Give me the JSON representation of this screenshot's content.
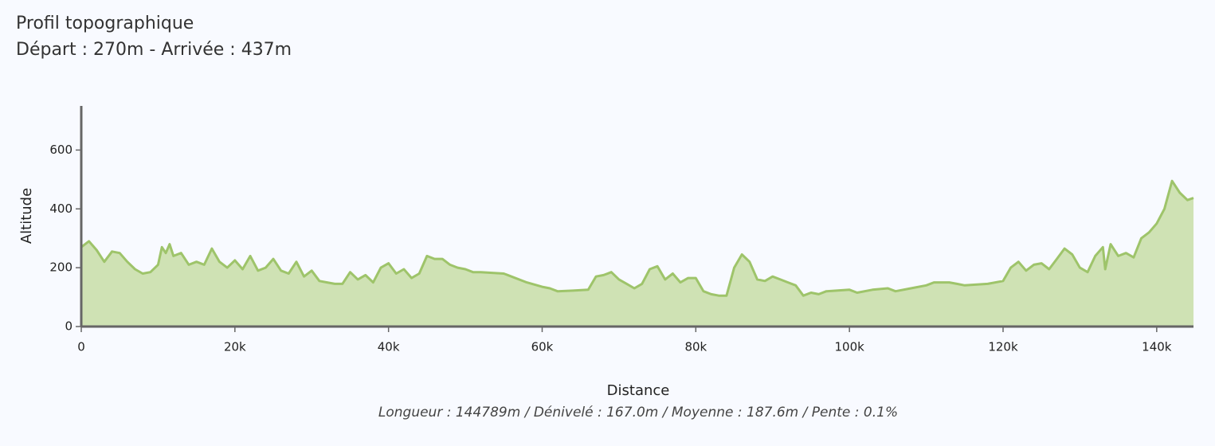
{
  "chart_data": {
    "type": "area",
    "title": "Profil topographique",
    "subtitle": "Départ : 270m - Arrivée : 437m",
    "x_label": "Distance",
    "y_label": "Altitude",
    "footer": "Longueur : 144789m / Dénivelé : 167.0m / Moyenne : 187.6m / Pente : 0.1%",
    "color": "#9ec46a",
    "fill": "#cfe2b4",
    "xlim": [
      0,
      144789
    ],
    "ylim": [
      0,
      750
    ],
    "xticks": [
      0,
      {
        "value": 20000,
        "label": "20k"
      },
      {
        "value": 40000,
        "label": "40k"
      },
      {
        "value": 60000,
        "label": "60k"
      },
      {
        "value": 80000,
        "label": "80k"
      },
      {
        "value": 100000,
        "label": "100k"
      },
      {
        "value": 120000,
        "label": "120k"
      },
      {
        "value": 140000,
        "label": "140k"
      }
    ],
    "yticks": [
      0,
      200,
      400,
      600
    ],
    "x": [
      0,
      1000,
      2000,
      3000,
      4000,
      5000,
      6000,
      7000,
      8000,
      9000,
      10000,
      10500,
      11000,
      11500,
      12000,
      13000,
      14000,
      15000,
      16000,
      17000,
      18000,
      19000,
      20000,
      21000,
      22000,
      23000,
      24000,
      25000,
      26000,
      27000,
      28000,
      29000,
      30000,
      31000,
      32000,
      33000,
      34000,
      35000,
      36000,
      37000,
      38000,
      39000,
      40000,
      41000,
      42000,
      43000,
      44000,
      45000,
      46000,
      47000,
      48000,
      49000,
      50000,
      51000,
      52000,
      55000,
      56000,
      58000,
      60000,
      61000,
      62000,
      64000,
      66000,
      67000,
      68000,
      69000,
      70000,
      71000,
      72000,
      73000,
      74000,
      75000,
      76000,
      77000,
      78000,
      79000,
      80000,
      81000,
      82000,
      83000,
      84000,
      85000,
      86000,
      87000,
      88000,
      89000,
      90000,
      91000,
      92000,
      93000,
      94000,
      95000,
      96000,
      97000,
      100000,
      101000,
      103000,
      105000,
      106000,
      108000,
      110000,
      111000,
      113000,
      114000,
      115000,
      118000,
      120000,
      121000,
      122000,
      123000,
      124000,
      125000,
      126000,
      127000,
      128000,
      129000,
      130000,
      131000,
      132000,
      133000,
      133300,
      134000,
      135000,
      136000,
      137000,
      138000,
      139000,
      140000,
      141000,
      142000,
      143000,
      144000,
      144789
    ],
    "values": [
      270,
      290,
      260,
      220,
      255,
      250,
      220,
      195,
      180,
      185,
      210,
      270,
      250,
      280,
      240,
      250,
      210,
      220,
      210,
      265,
      220,
      200,
      225,
      195,
      240,
      190,
      200,
      230,
      190,
      180,
      220,
      170,
      190,
      155,
      150,
      145,
      145,
      185,
      160,
      175,
      150,
      200,
      215,
      180,
      195,
      165,
      180,
      240,
      230,
      230,
      210,
      200,
      195,
      185,
      185,
      180,
      170,
      150,
      135,
      130,
      120,
      122,
      125,
      170,
      175,
      185,
      160,
      145,
      130,
      145,
      195,
      205,
      160,
      180,
      150,
      165,
      165,
      120,
      110,
      105,
      105,
      200,
      245,
      220,
      160,
      155,
      170,
      160,
      150,
      140,
      105,
      115,
      110,
      120,
      125,
      115,
      125,
      130,
      120,
      130,
      140,
      150,
      150,
      145,
      140,
      145,
      155,
      200,
      220,
      190,
      210,
      215,
      195,
      230,
      265,
      245,
      200,
      185,
      240,
      270,
      195,
      280,
      240,
      250,
      235,
      300,
      320,
      350,
      400,
      495,
      455,
      430,
      437
    ]
  }
}
